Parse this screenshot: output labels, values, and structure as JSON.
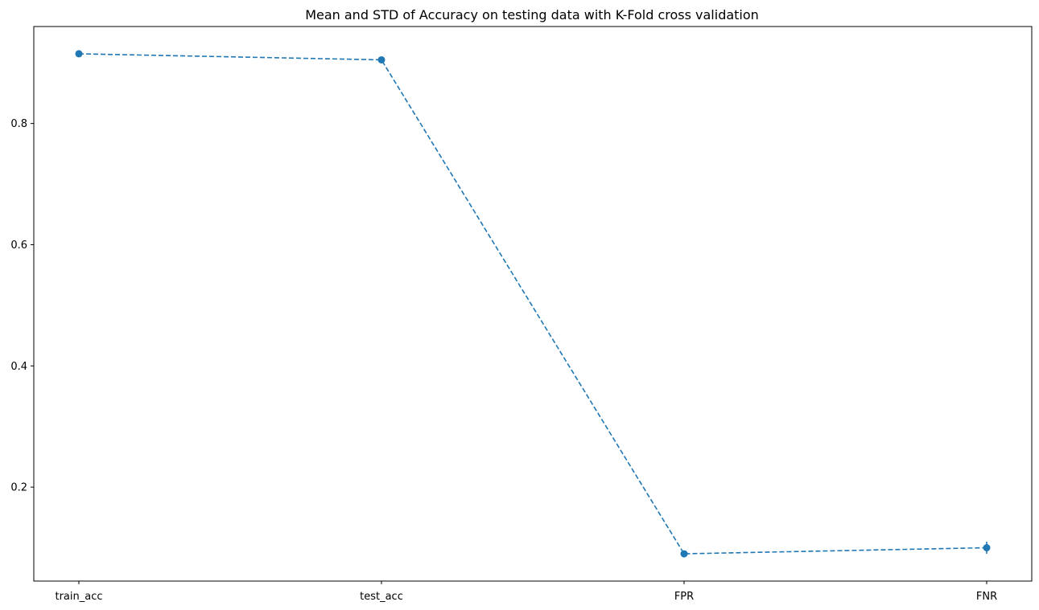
{
  "chart_data": {
    "type": "line",
    "title": "Mean and STD of Accuracy on testing data with K-Fold cross validation",
    "xlabel": "",
    "ylabel": "",
    "categories": [
      "train_acc",
      "test_acc",
      "FPR",
      "FNR"
    ],
    "series": [
      {
        "values": [
          0.915,
          0.905,
          0.09,
          0.1
        ],
        "std": [
          0.003,
          0.004,
          0.004,
          0.01
        ],
        "line_style": "dashed",
        "marker": "circle"
      }
    ],
    "y_ticks": [
      0.2,
      0.4,
      0.6,
      0.8
    ],
    "y_tick_labels": [
      "0.2",
      "0.4",
      "0.6",
      "0.8"
    ],
    "ylim": [
      0.045,
      0.96
    ],
    "grid": false,
    "legend": "none",
    "colors": {
      "series": "#1f77b4",
      "axes": "#000000"
    }
  }
}
